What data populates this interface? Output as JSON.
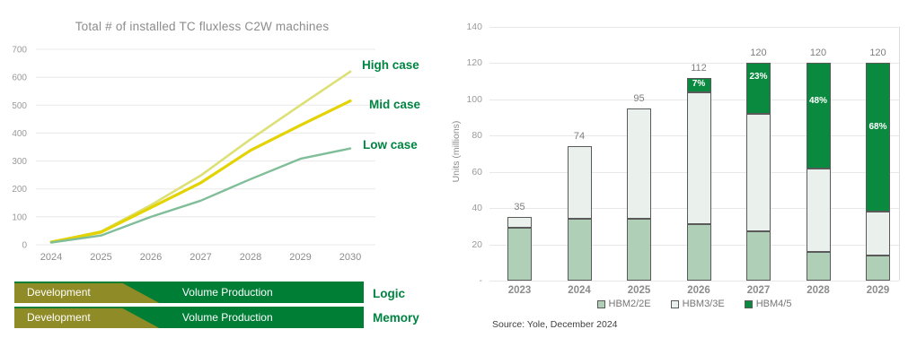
{
  "colors": {
    "brand_label_green": "#008442",
    "roadmap_green": "#007E36",
    "roadmap_olive": "#8F8B26",
    "grid": "#E8E8E8",
    "axis_text": "#8C8C8C",
    "bar_border": "#5A5A5A"
  },
  "chart_data": [
    {
      "type": "line",
      "title": "Total # of installed TC fluxless C2W machines",
      "x": [
        2024,
        2025,
        2026,
        2027,
        2028,
        2029,
        2030
      ],
      "series": [
        {
          "name": "High case",
          "values": [
            10,
            48,
            142,
            248,
            378,
            500,
            620
          ],
          "color": "#DDE074"
        },
        {
          "name": "Mid case",
          "values": [
            10,
            45,
            133,
            222,
            338,
            428,
            515
          ],
          "color": "#E3D303"
        },
        {
          "name": "Low case",
          "values": [
            8,
            33,
            100,
            158,
            235,
            308,
            345
          ],
          "color": "#7FBE98"
        }
      ],
      "ylim": [
        0,
        700
      ],
      "yticks": [
        0,
        100,
        200,
        300,
        400,
        500,
        600,
        700
      ],
      "grid": true,
      "legend_position": "right-of-lines"
    },
    {
      "type": "bar",
      "stacked": true,
      "ylabel": "Units (millions)",
      "categories": [
        2023,
        2024,
        2025,
        2026,
        2027,
        2028,
        2029
      ],
      "series": [
        {
          "name": "HBM2/2E",
          "values": [
            29,
            34,
            34,
            31,
            27,
            16,
            14
          ],
          "color": "#AFCFB6"
        },
        {
          "name": "HBM3/3E",
          "values": [
            6,
            40,
            61,
            73,
            65,
            46,
            24
          ],
          "color": "#EAF0EB"
        },
        {
          "name": "HBM4/5",
          "values": [
            0,
            0,
            0,
            8,
            28,
            58,
            82
          ],
          "color": "#0A8A3E"
        }
      ],
      "totals": [
        35,
        74,
        95,
        112,
        120,
        120,
        120
      ],
      "share_labels": [
        "",
        "",
        "",
        "7%",
        "23%",
        "48%",
        "68%"
      ],
      "ylim": [
        0,
        140
      ],
      "yticks": [
        0,
        20,
        40,
        60,
        80,
        100,
        120,
        140
      ],
      "ytick_labels": [
        "-",
        "20",
        "40",
        "60",
        "80",
        "100",
        "120",
        "140"
      ],
      "grid": true,
      "legend_position": "bottom",
      "source": "Source: Yole, December 2024"
    }
  ],
  "roadmap": {
    "rows": [
      {
        "phase1": "Development",
        "phase2": "Volume Production",
        "label": "Logic"
      },
      {
        "phase1": "Development",
        "phase2": "Volume Production",
        "label": "Memory"
      }
    ]
  }
}
